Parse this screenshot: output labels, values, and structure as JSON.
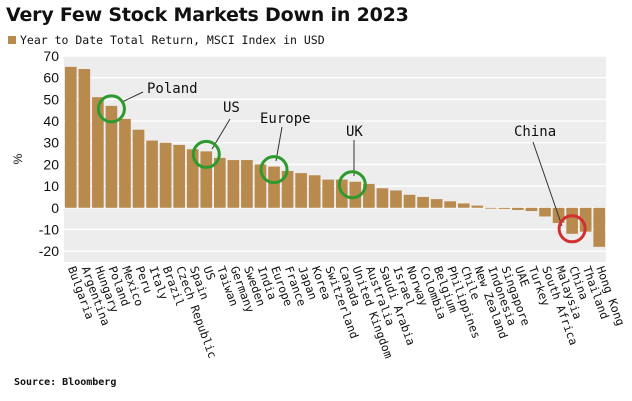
{
  "title": "Very Few Stock Markets Down in 2023",
  "source": "Source: Bloomberg",
  "colors": {
    "bar": "#b98a4d",
    "highlight_green": "#2e9a2e",
    "highlight_red": "#d03030",
    "plot_bg": "#ededed",
    "grid": "#ffffff"
  },
  "chart_data": {
    "type": "bar",
    "ylabel": "%",
    "ylim": [
      -25,
      70
    ],
    "yticks": [
      70,
      60,
      50,
      40,
      30,
      20,
      10,
      0,
      -10,
      -20
    ],
    "grid": true,
    "legend": "top-left",
    "categories": [
      "Bulgaria",
      "Argentina",
      "Hungary",
      "Poland",
      "Mexico",
      "Peru",
      "Italy",
      "Brazil",
      "Czech Republic",
      "Spain",
      "US",
      "Taiwan",
      "Germany",
      "Sweden",
      "India",
      "Europe",
      "France",
      "Japan",
      "Korea",
      "Switzerland",
      "Canada",
      "United Kingdom",
      "Australia",
      "Saudi Arabia",
      "Israel",
      "Norway",
      "Colombia",
      "Belgium",
      "Philippines",
      "Chile",
      "New Zealand",
      "Indonesia",
      "Singapore",
      "UAE",
      "Turkey",
      "South Africa",
      "Malaysia",
      "China",
      "Thailand",
      "Hong Kong"
    ],
    "series": [
      {
        "name": "Year to Date Total Return, MSCI Index in USD",
        "values": [
          65,
          64,
          51,
          47,
          41,
          36,
          31,
          30,
          29,
          27,
          26,
          23,
          22,
          22,
          20,
          19,
          17,
          16,
          15,
          13,
          13,
          12,
          11,
          9,
          8,
          6,
          5,
          4,
          3,
          2,
          1,
          0,
          -0.5,
          -1,
          -1.5,
          -4,
          -7,
          -12,
          -11,
          -18
        ]
      }
    ],
    "annotations": [
      {
        "label": "Poland",
        "category": "Poland",
        "circle_color": "green"
      },
      {
        "label": "US",
        "category": "US",
        "circle_color": "green"
      },
      {
        "label": "Europe",
        "category": "Europe",
        "circle_color": "green"
      },
      {
        "label": "UK",
        "category": "United Kingdom",
        "circle_color": "green"
      },
      {
        "label": "China",
        "category": "China",
        "circle_color": "red"
      }
    ]
  }
}
